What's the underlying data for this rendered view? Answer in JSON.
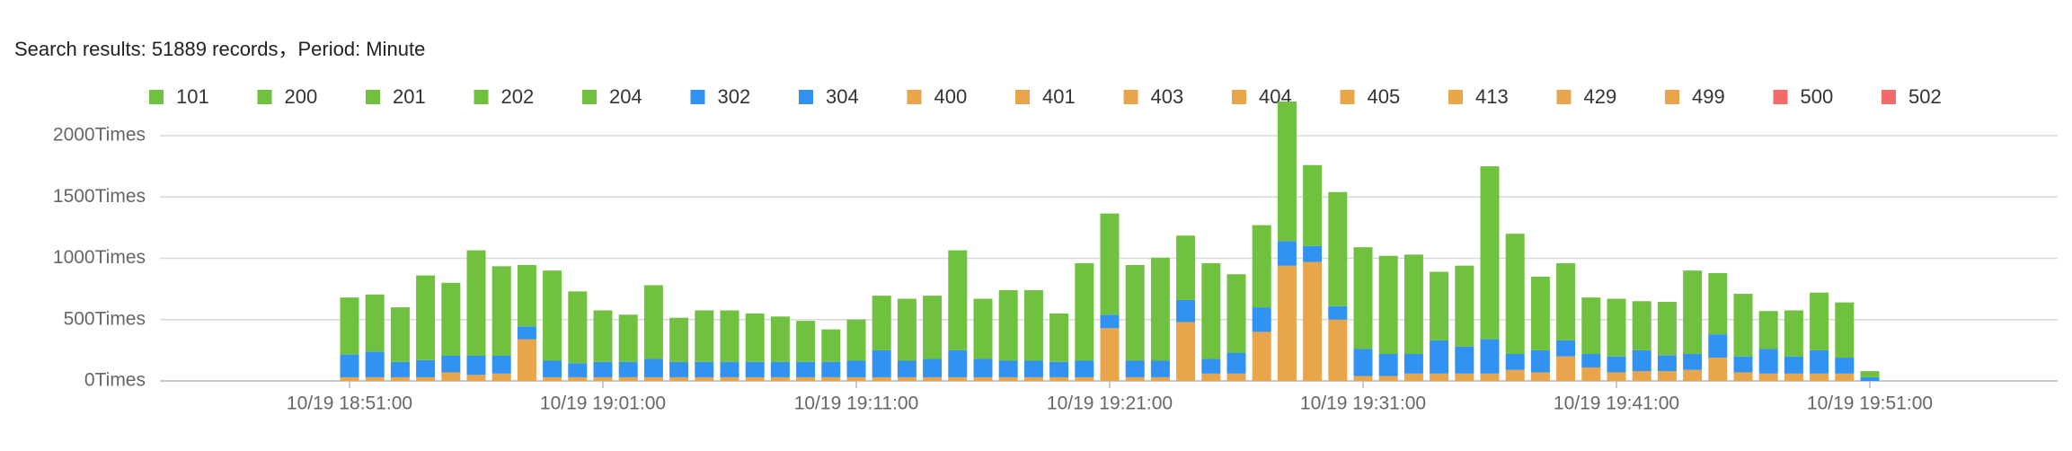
{
  "chart_data": {
    "type": "stacked-bar",
    "title": "Search results: 51889 records，Period: Minute",
    "categories": [
      "10/19 18:51:00",
      null,
      null,
      null,
      null,
      null,
      null,
      null,
      null,
      null,
      "10/19 19:01:00",
      null,
      null,
      null,
      null,
      null,
      null,
      null,
      null,
      null,
      "10/19 19:11:00",
      null,
      null,
      null,
      null,
      null,
      null,
      null,
      null,
      null,
      "10/19 19:21:00",
      null,
      null,
      null,
      null,
      null,
      null,
      null,
      null,
      null,
      "10/19 19:31:00",
      null,
      null,
      null,
      null,
      null,
      null,
      null,
      null,
      null,
      "10/19 19:41:00",
      null,
      null,
      null,
      null,
      null,
      null,
      null,
      null,
      null,
      "10/19 19:51:00"
    ],
    "ylim": [
      0,
      2300
    ],
    "yticks": [
      {
        "value": 0,
        "label": "0Times"
      },
      {
        "value": 500,
        "label": "500Times"
      },
      {
        "value": 1000,
        "label": "1000Times"
      },
      {
        "value": 1500,
        "label": "1500Times"
      },
      {
        "value": 2000,
        "label": "2000Times"
      }
    ],
    "grid": true,
    "series": [
      {
        "name": "101",
        "color": "#70c13f",
        "values": [
          0,
          0,
          0,
          0,
          0,
          0,
          0,
          0,
          0,
          0,
          0,
          0,
          0,
          0,
          0,
          0,
          0,
          0,
          0,
          0,
          0,
          0,
          0,
          0,
          0,
          0,
          0,
          0,
          0,
          0,
          0,
          0,
          0,
          0,
          0,
          0,
          0,
          0,
          0,
          0,
          0,
          0,
          0,
          0,
          0,
          0,
          0,
          0,
          0,
          0,
          0,
          0,
          0,
          0,
          0,
          0,
          0,
          0,
          0,
          0,
          0
        ]
      },
      {
        "name": "200",
        "color": "#70c13f",
        "values": [
          465,
          465,
          445,
          690,
          595,
          860,
          730,
          500,
          735,
          585,
          420,
          385,
          600,
          360,
          420,
          420,
          395,
          370,
          335,
          265,
          335,
          445,
          505,
          515,
          815,
          490,
          575,
          575,
          395,
          795,
          825,
          780,
          840,
          525,
          780,
          640,
          670,
          1138,
          660,
          930,
          830,
          800,
          810,
          560,
          660,
          1410,
          980,
          600,
          630,
          460,
          470,
          400,
          435,
          680,
          500,
          510,
          310,
          375,
          470,
          450,
          50
        ]
      },
      {
        "name": "201",
        "color": "#70c13f",
        "values": [
          0,
          0,
          0,
          0,
          0,
          0,
          0,
          0,
          0,
          0,
          0,
          0,
          0,
          0,
          0,
          0,
          0,
          0,
          0,
          0,
          0,
          0,
          0,
          0,
          0,
          0,
          0,
          0,
          0,
          0,
          0,
          0,
          0,
          0,
          0,
          0,
          0,
          0,
          0,
          0,
          0,
          0,
          0,
          0,
          0,
          0,
          0,
          0,
          0,
          0,
          0,
          0,
          0,
          0,
          0,
          0,
          0,
          0,
          0,
          0,
          0
        ]
      },
      {
        "name": "202",
        "color": "#70c13f",
        "values": [
          0,
          0,
          0,
          0,
          0,
          0,
          0,
          0,
          0,
          0,
          0,
          0,
          0,
          0,
          0,
          0,
          0,
          0,
          0,
          0,
          0,
          0,
          0,
          0,
          0,
          0,
          0,
          0,
          0,
          0,
          0,
          0,
          0,
          0,
          0,
          0,
          0,
          0,
          0,
          0,
          0,
          0,
          0,
          0,
          0,
          0,
          0,
          0,
          0,
          0,
          0,
          0,
          0,
          0,
          0,
          0,
          0,
          0,
          0,
          0,
          0
        ]
      },
      {
        "name": "204",
        "color": "#70c13f",
        "values": [
          0,
          0,
          0,
          0,
          0,
          0,
          0,
          0,
          0,
          0,
          0,
          0,
          0,
          0,
          0,
          0,
          0,
          0,
          0,
          0,
          0,
          0,
          0,
          0,
          0,
          0,
          0,
          0,
          0,
          0,
          0,
          0,
          0,
          0,
          0,
          0,
          0,
          0,
          0,
          0,
          0,
          0,
          0,
          0,
          0,
          0,
          0,
          0,
          0,
          0,
          0,
          0,
          0,
          0,
          0,
          0,
          0,
          0,
          0,
          0,
          0
        ]
      },
      {
        "name": "302",
        "color": "#3192f2",
        "values": [
          185,
          210,
          125,
          140,
          135,
          155,
          145,
          105,
          135,
          115,
          125,
          125,
          150,
          125,
          125,
          125,
          125,
          125,
          125,
          125,
          135,
          220,
          135,
          150,
          220,
          150,
          135,
          135,
          125,
          135,
          110,
          135,
          135,
          180,
          120,
          170,
          200,
          200,
          130,
          110,
          220,
          180,
          160,
          270,
          220,
          280,
          130,
          180,
          130,
          110,
          130,
          170,
          130,
          130,
          190,
          130,
          200,
          140,
          190,
          130,
          30
        ]
      },
      {
        "name": "304",
        "color": "#3192f2",
        "values": [
          0,
          0,
          0,
          0,
          0,
          0,
          0,
          0,
          0,
          0,
          0,
          0,
          0,
          0,
          0,
          0,
          0,
          0,
          0,
          0,
          0,
          0,
          0,
          0,
          0,
          0,
          0,
          0,
          0,
          0,
          0,
          0,
          0,
          0,
          0,
          0,
          0,
          0,
          0,
          0,
          0,
          0,
          0,
          0,
          0,
          0,
          0,
          0,
          0,
          0,
          0,
          0,
          0,
          0,
          0,
          0,
          0,
          0,
          0,
          0,
          0
        ]
      },
      {
        "name": "400",
        "color": "#e8a54b",
        "values": [
          30,
          30,
          30,
          30,
          70,
          50,
          60,
          340,
          30,
          30,
          30,
          30,
          30,
          30,
          30,
          30,
          30,
          30,
          30,
          30,
          30,
          30,
          30,
          30,
          30,
          30,
          30,
          30,
          30,
          30,
          430,
          30,
          30,
          480,
          60,
          60,
          400,
          940,
          970,
          500,
          40,
          40,
          60,
          60,
          60,
          60,
          90,
          70,
          200,
          110,
          70,
          80,
          80,
          90,
          190,
          70,
          60,
          60,
          60,
          60,
          0
        ]
      },
      {
        "name": "401",
        "color": "#e8a54b",
        "values": [
          0,
          0,
          0,
          0,
          0,
          0,
          0,
          0,
          0,
          0,
          0,
          0,
          0,
          0,
          0,
          0,
          0,
          0,
          0,
          0,
          0,
          0,
          0,
          0,
          0,
          0,
          0,
          0,
          0,
          0,
          0,
          0,
          0,
          0,
          0,
          0,
          0,
          0,
          0,
          0,
          0,
          0,
          0,
          0,
          0,
          0,
          0,
          0,
          0,
          0,
          0,
          0,
          0,
          0,
          0,
          0,
          0,
          0,
          0,
          0,
          0
        ]
      },
      {
        "name": "403",
        "color": "#e8a54b",
        "values": [
          0,
          0,
          0,
          0,
          0,
          0,
          0,
          0,
          0,
          0,
          0,
          0,
          0,
          0,
          0,
          0,
          0,
          0,
          0,
          0,
          0,
          0,
          0,
          0,
          0,
          0,
          0,
          0,
          0,
          0,
          0,
          0,
          0,
          0,
          0,
          0,
          0,
          0,
          0,
          0,
          0,
          0,
          0,
          0,
          0,
          0,
          0,
          0,
          0,
          0,
          0,
          0,
          0,
          0,
          0,
          0,
          0,
          0,
          0,
          0,
          0
        ]
      },
      {
        "name": "404",
        "color": "#e8a54b",
        "values": [
          0,
          0,
          0,
          0,
          0,
          0,
          0,
          0,
          0,
          0,
          0,
          0,
          0,
          0,
          0,
          0,
          0,
          0,
          0,
          0,
          0,
          0,
          0,
          0,
          0,
          0,
          0,
          0,
          0,
          0,
          0,
          0,
          0,
          0,
          0,
          0,
          0,
          0,
          0,
          0,
          0,
          0,
          0,
          0,
          0,
          0,
          0,
          0,
          0,
          0,
          0,
          0,
          0,
          0,
          0,
          0,
          0,
          0,
          0,
          0,
          0
        ]
      },
      {
        "name": "405",
        "color": "#e8a54b",
        "values": [
          0,
          0,
          0,
          0,
          0,
          0,
          0,
          0,
          0,
          0,
          0,
          0,
          0,
          0,
          0,
          0,
          0,
          0,
          0,
          0,
          0,
          0,
          0,
          0,
          0,
          0,
          0,
          0,
          0,
          0,
          0,
          0,
          0,
          0,
          0,
          0,
          0,
          0,
          0,
          0,
          0,
          0,
          0,
          0,
          0,
          0,
          0,
          0,
          0,
          0,
          0,
          0,
          0,
          0,
          0,
          0,
          0,
          0,
          0,
          0,
          0
        ]
      },
      {
        "name": "413",
        "color": "#e8a54b",
        "values": [
          0,
          0,
          0,
          0,
          0,
          0,
          0,
          0,
          0,
          0,
          0,
          0,
          0,
          0,
          0,
          0,
          0,
          0,
          0,
          0,
          0,
          0,
          0,
          0,
          0,
          0,
          0,
          0,
          0,
          0,
          0,
          0,
          0,
          0,
          0,
          0,
          0,
          0,
          0,
          0,
          0,
          0,
          0,
          0,
          0,
          0,
          0,
          0,
          0,
          0,
          0,
          0,
          0,
          0,
          0,
          0,
          0,
          0,
          0,
          0,
          0
        ]
      },
      {
        "name": "429",
        "color": "#e8a54b",
        "values": [
          0,
          0,
          0,
          0,
          0,
          0,
          0,
          0,
          0,
          0,
          0,
          0,
          0,
          0,
          0,
          0,
          0,
          0,
          0,
          0,
          0,
          0,
          0,
          0,
          0,
          0,
          0,
          0,
          0,
          0,
          0,
          0,
          0,
          0,
          0,
          0,
          0,
          0,
          0,
          0,
          0,
          0,
          0,
          0,
          0,
          0,
          0,
          0,
          0,
          0,
          0,
          0,
          0,
          0,
          0,
          0,
          0,
          0,
          0,
          0,
          0
        ]
      },
      {
        "name": "499",
        "color": "#e8a54b",
        "values": [
          0,
          0,
          0,
          0,
          0,
          0,
          0,
          0,
          0,
          0,
          0,
          0,
          0,
          0,
          0,
          0,
          0,
          0,
          0,
          0,
          0,
          0,
          0,
          0,
          0,
          0,
          0,
          0,
          0,
          0,
          0,
          0,
          0,
          0,
          0,
          0,
          0,
          0,
          0,
          0,
          0,
          0,
          0,
          0,
          0,
          0,
          0,
          0,
          0,
          0,
          0,
          0,
          0,
          0,
          0,
          0,
          0,
          0,
          0,
          0,
          0
        ]
      },
      {
        "name": "500",
        "color": "#f26b6b",
        "values": [
          0,
          0,
          0,
          0,
          0,
          0,
          0,
          0,
          0,
          0,
          0,
          0,
          0,
          0,
          0,
          0,
          0,
          0,
          0,
          0,
          0,
          0,
          0,
          0,
          0,
          0,
          0,
          0,
          0,
          0,
          0,
          0,
          0,
          0,
          0,
          0,
          0,
          0,
          0,
          0,
          0,
          0,
          0,
          0,
          0,
          0,
          0,
          0,
          0,
          0,
          0,
          0,
          0,
          0,
          0,
          0,
          0,
          0,
          0,
          0,
          0
        ]
      },
      {
        "name": "502",
        "color": "#f26b6b",
        "values": [
          0,
          0,
          0,
          0,
          0,
          0,
          0,
          0,
          0,
          0,
          0,
          0,
          0,
          0,
          0,
          0,
          0,
          0,
          0,
          0,
          0,
          0,
          0,
          0,
          0,
          0,
          0,
          0,
          0,
          0,
          0,
          0,
          0,
          0,
          0,
          0,
          0,
          0,
          0,
          0,
          0,
          0,
          0,
          0,
          0,
          0,
          0,
          0,
          0,
          0,
          0,
          0,
          0,
          0,
          0,
          0,
          0,
          0,
          0,
          0,
          0
        ]
      }
    ]
  }
}
